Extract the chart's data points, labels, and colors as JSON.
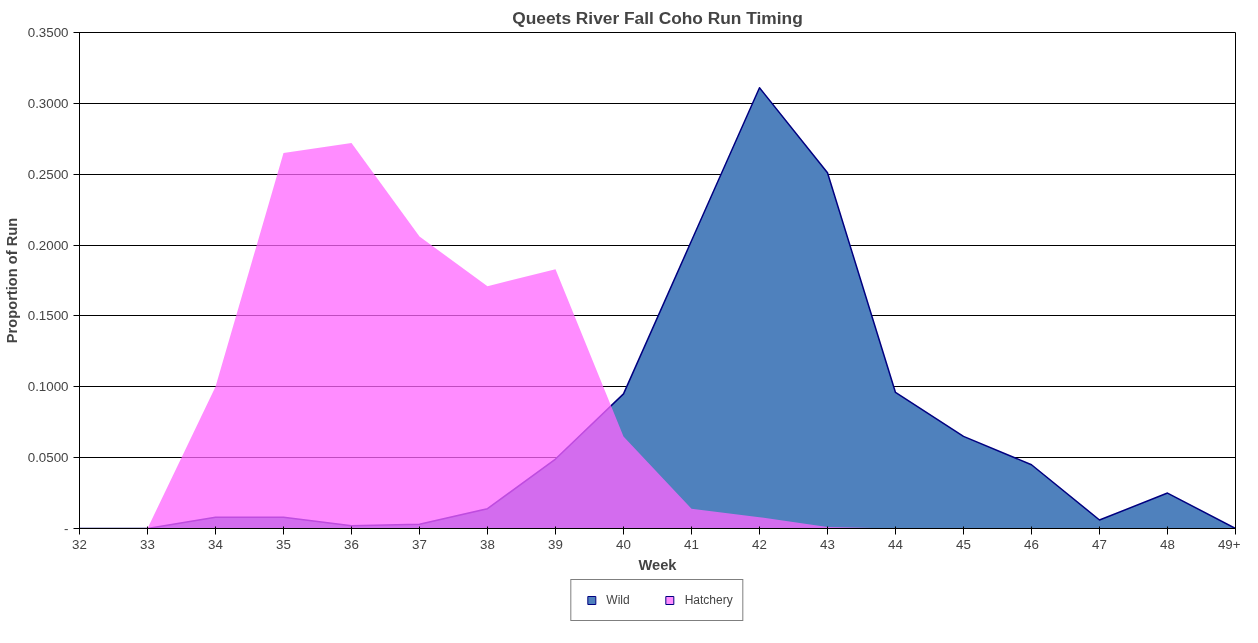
{
  "chart_data": {
    "type": "area",
    "title": "Queets River Fall Coho Run Timing",
    "xlabel": "Week",
    "ylabel": "Proportion of Run",
    "categories": [
      "32",
      "33",
      "34",
      "35",
      "36",
      "37",
      "38",
      "39",
      "40",
      "41",
      "42",
      "43",
      "44",
      "45",
      "46",
      "47",
      "48",
      "49+"
    ],
    "series": [
      {
        "name": "Wild",
        "color": "#4f81bd",
        "values": [
          0,
          0,
          0.008,
          0.008,
          0.002,
          0.003,
          0.014,
          0.049,
          0.095,
          0.203,
          0.311,
          0.251,
          0.096,
          0.065,
          0.045,
          0.006,
          0.025,
          0
        ]
      },
      {
        "name": "Hatchery",
        "color": "#ff66ff",
        "values": [
          0,
          0,
          0.1,
          0.265,
          0.272,
          0.206,
          0.171,
          0.183,
          0.065,
          0.014,
          0.008,
          0.001,
          0,
          0,
          0,
          0,
          0,
          0
        ]
      }
    ],
    "ylim": [
      0,
      0.35
    ],
    "yticks": [
      {
        "value": 0,
        "label": "-"
      },
      {
        "value": 0.05,
        "label": "0.0500"
      },
      {
        "value": 0.1,
        "label": "0.1000"
      },
      {
        "value": 0.15,
        "label": "0.1500"
      },
      {
        "value": 0.2,
        "label": "0.2000"
      },
      {
        "value": 0.25,
        "label": "0.2500"
      },
      {
        "value": 0.3,
        "label": "0.3000"
      },
      {
        "value": 0.35,
        "label": "0.3500"
      }
    ],
    "grid": "y",
    "legend": "bottom"
  }
}
